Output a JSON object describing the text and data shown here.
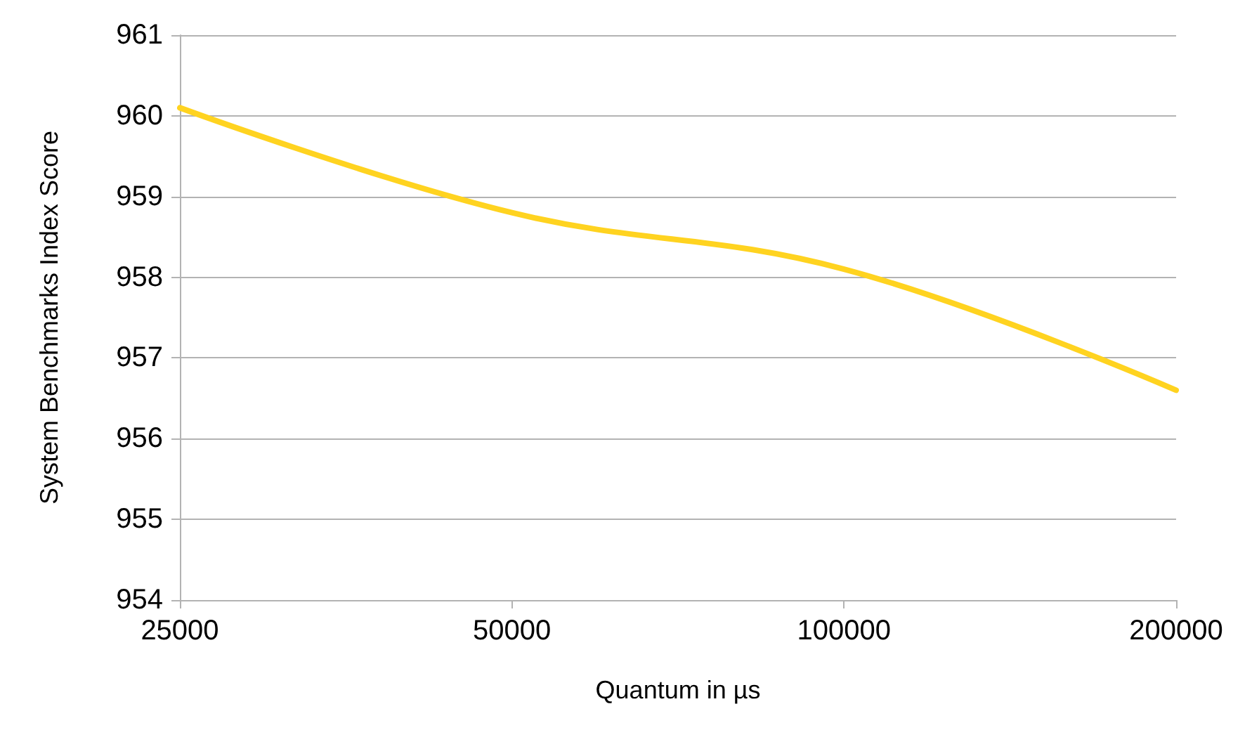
{
  "chart_data": {
    "type": "line",
    "xlabel": "Quantum in µs",
    "ylabel": "System Benchmarks Index Score",
    "categories": [
      "25000",
      "50000",
      "100000",
      "200000"
    ],
    "series": [
      {
        "color": "#ffd320",
        "values": [
          960.1,
          958.8,
          958.1,
          956.6
        ]
      }
    ],
    "ylim": [
      954,
      961
    ],
    "yticks": [
      954,
      955,
      956,
      957,
      958,
      959,
      960,
      961
    ],
    "grid": "y",
    "marker": "none",
    "line_style": "solid"
  }
}
